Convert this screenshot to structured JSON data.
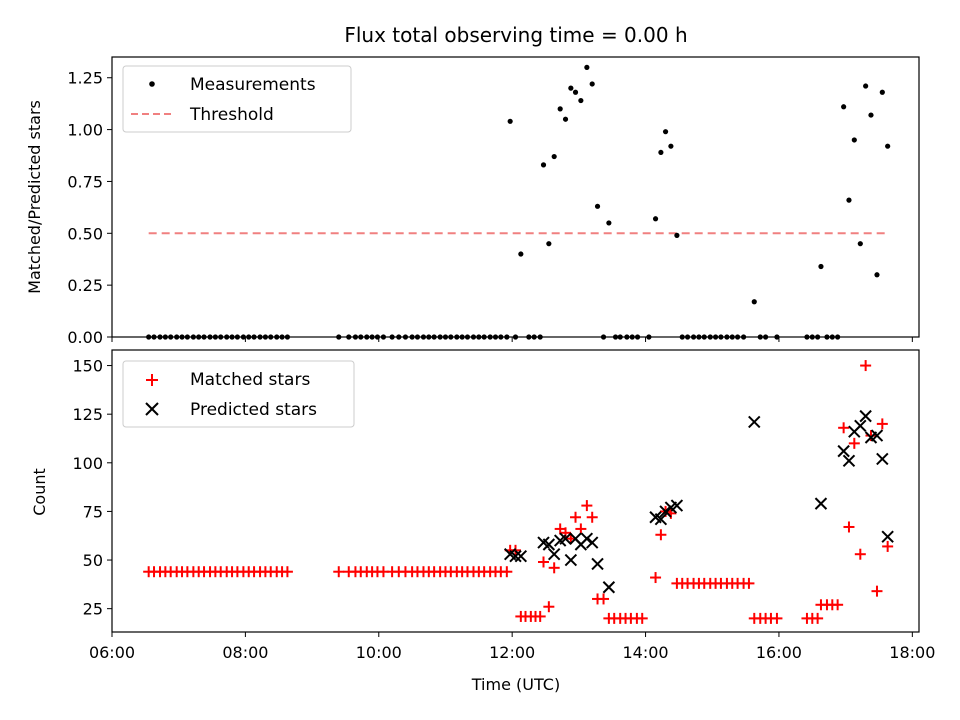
{
  "chart_data": [
    {
      "type": "scatter",
      "title": "Flux total observing time = 0.00 h",
      "ylabel": "Matched/Predicted stars",
      "xlabel": "",
      "ylim": [
        0,
        1.35
      ],
      "yticks": [
        "0.00",
        "0.25",
        "0.50",
        "0.75",
        "1.00",
        "1.25"
      ],
      "legend_position": "upper-left",
      "series": [
        {
          "name": "Measurements",
          "marker": "dot",
          "color": "#000000",
          "points": [
            [
              6.55,
              0
            ],
            [
              6.63,
              0
            ],
            [
              6.72,
              0
            ],
            [
              6.8,
              0
            ],
            [
              6.88,
              0
            ],
            [
              6.97,
              0
            ],
            [
              7.05,
              0
            ],
            [
              7.13,
              0
            ],
            [
              7.22,
              0
            ],
            [
              7.3,
              0
            ],
            [
              7.38,
              0
            ],
            [
              7.47,
              0
            ],
            [
              7.55,
              0
            ],
            [
              7.63,
              0
            ],
            [
              7.72,
              0
            ],
            [
              7.8,
              0
            ],
            [
              7.88,
              0
            ],
            [
              7.97,
              0
            ],
            [
              8.05,
              0
            ],
            [
              8.13,
              0
            ],
            [
              8.22,
              0
            ],
            [
              8.3,
              0
            ],
            [
              8.38,
              0
            ],
            [
              8.47,
              0
            ],
            [
              8.55,
              0
            ],
            [
              8.63,
              0
            ],
            [
              9.4,
              0
            ],
            [
              9.55,
              0
            ],
            [
              9.65,
              0
            ],
            [
              9.73,
              0
            ],
            [
              9.82,
              0
            ],
            [
              9.9,
              0
            ],
            [
              9.98,
              0
            ],
            [
              10.07,
              0
            ],
            [
              10.2,
              0
            ],
            [
              10.3,
              0
            ],
            [
              10.4,
              0
            ],
            [
              10.5,
              0
            ],
            [
              10.58,
              0
            ],
            [
              10.67,
              0
            ],
            [
              10.75,
              0
            ],
            [
              10.83,
              0
            ],
            [
              10.92,
              0
            ],
            [
              11.0,
              0
            ],
            [
              11.08,
              0
            ],
            [
              11.17,
              0
            ],
            [
              11.25,
              0
            ],
            [
              11.33,
              0
            ],
            [
              11.42,
              0
            ],
            [
              11.5,
              0
            ],
            [
              11.58,
              0
            ],
            [
              11.67,
              0
            ],
            [
              11.75,
              0
            ],
            [
              11.83,
              0
            ],
            [
              11.92,
              0
            ],
            [
              12.05,
              0
            ],
            [
              12.25,
              0
            ],
            [
              12.33,
              0
            ],
            [
              12.42,
              0
            ],
            [
              13.37,
              0
            ],
            [
              13.55,
              0
            ],
            [
              13.62,
              0
            ],
            [
              13.72,
              0
            ],
            [
              13.8,
              0
            ],
            [
              13.88,
              0
            ],
            [
              14.05,
              0
            ],
            [
              14.55,
              0
            ],
            [
              14.63,
              0
            ],
            [
              14.72,
              0
            ],
            [
              14.8,
              0
            ],
            [
              14.88,
              0
            ],
            [
              14.97,
              0
            ],
            [
              15.05,
              0
            ],
            [
              15.13,
              0
            ],
            [
              15.22,
              0
            ],
            [
              15.3,
              0
            ],
            [
              15.38,
              0
            ],
            [
              15.47,
              0
            ],
            [
              15.72,
              0
            ],
            [
              15.8,
              0
            ],
            [
              15.97,
              0
            ],
            [
              16.42,
              0
            ],
            [
              16.5,
              0
            ],
            [
              16.58,
              0
            ],
            [
              16.72,
              0
            ],
            [
              16.8,
              0
            ],
            [
              16.88,
              0
            ],
            [
              11.97,
              1.04
            ],
            [
              12.13,
              0.4
            ],
            [
              12.47,
              0.83
            ],
            [
              12.55,
              0.45
            ],
            [
              12.63,
              0.87
            ],
            [
              12.72,
              1.1
            ],
            [
              12.8,
              1.05
            ],
            [
              12.88,
              1.2
            ],
            [
              12.95,
              1.18
            ],
            [
              13.03,
              1.14
            ],
            [
              13.12,
              1.3
            ],
            [
              13.2,
              1.22
            ],
            [
              13.28,
              0.63
            ],
            [
              13.45,
              0.55
            ],
            [
              14.15,
              0.57
            ],
            [
              14.23,
              0.89
            ],
            [
              14.3,
              0.99
            ],
            [
              14.38,
              0.92
            ],
            [
              14.47,
              0.49
            ],
            [
              15.63,
              0.17
            ],
            [
              16.63,
              0.34
            ],
            [
              16.97,
              1.11
            ],
            [
              17.05,
              0.66
            ],
            [
              17.13,
              0.95
            ],
            [
              17.22,
              0.45
            ],
            [
              17.3,
              1.21
            ],
            [
              17.38,
              1.07
            ],
            [
              17.47,
              0.3
            ],
            [
              17.55,
              1.18
            ],
            [
              17.63,
              0.92
            ]
          ]
        },
        {
          "name": "Threshold",
          "marker": "dashed-line",
          "color": "#f08080",
          "points": [
            [
              6.55,
              0.5
            ],
            [
              17.63,
              0.5
            ]
          ]
        }
      ]
    },
    {
      "type": "scatter",
      "title": "",
      "ylabel": "Count",
      "xlabel": "Time (UTC)",
      "xlim": [
        6,
        18.1
      ],
      "ylim": [
        13,
        158
      ],
      "xticks": [
        "06:00",
        "08:00",
        "10:00",
        "12:00",
        "14:00",
        "16:00",
        "18:00"
      ],
      "yticks": [
        "25",
        "50",
        "75",
        "100",
        "125",
        "150"
      ],
      "legend_position": "upper-left",
      "series": [
        {
          "name": "Matched stars",
          "marker": "plus",
          "color": "#ff0000",
          "points": [
            [
              6.55,
              44
            ],
            [
              6.63,
              44
            ],
            [
              6.72,
              44
            ],
            [
              6.8,
              44
            ],
            [
              6.88,
              44
            ],
            [
              6.97,
              44
            ],
            [
              7.05,
              44
            ],
            [
              7.13,
              44
            ],
            [
              7.22,
              44
            ],
            [
              7.3,
              44
            ],
            [
              7.38,
              44
            ],
            [
              7.47,
              44
            ],
            [
              7.55,
              44
            ],
            [
              7.63,
              44
            ],
            [
              7.72,
              44
            ],
            [
              7.8,
              44
            ],
            [
              7.88,
              44
            ],
            [
              7.97,
              44
            ],
            [
              8.05,
              44
            ],
            [
              8.13,
              44
            ],
            [
              8.22,
              44
            ],
            [
              8.3,
              44
            ],
            [
              8.38,
              44
            ],
            [
              8.47,
              44
            ],
            [
              8.55,
              44
            ],
            [
              8.63,
              44
            ],
            [
              9.4,
              44
            ],
            [
              9.55,
              44
            ],
            [
              9.65,
              44
            ],
            [
              9.73,
              44
            ],
            [
              9.82,
              44
            ],
            [
              9.9,
              44
            ],
            [
              9.98,
              44
            ],
            [
              10.07,
              44
            ],
            [
              10.2,
              44
            ],
            [
              10.3,
              44
            ],
            [
              10.4,
              44
            ],
            [
              10.5,
              44
            ],
            [
              10.58,
              44
            ],
            [
              10.67,
              44
            ],
            [
              10.75,
              44
            ],
            [
              10.83,
              44
            ],
            [
              10.92,
              44
            ],
            [
              11.0,
              44
            ],
            [
              11.08,
              44
            ],
            [
              11.17,
              44
            ],
            [
              11.25,
              44
            ],
            [
              11.33,
              44
            ],
            [
              11.42,
              44
            ],
            [
              11.5,
              44
            ],
            [
              11.58,
              44
            ],
            [
              11.67,
              44
            ],
            [
              11.75,
              44
            ],
            [
              11.83,
              44
            ],
            [
              11.92,
              44
            ],
            [
              11.97,
              55
            ],
            [
              12.05,
              55
            ],
            [
              12.13,
              21
            ],
            [
              12.2,
              21
            ],
            [
              12.28,
              21
            ],
            [
              12.35,
              21
            ],
            [
              12.42,
              21
            ],
            [
              12.47,
              49
            ],
            [
              12.55,
              26
            ],
            [
              12.63,
              46
            ],
            [
              12.72,
              66
            ],
            [
              12.8,
              64
            ],
            [
              12.88,
              61
            ],
            [
              12.95,
              72
            ],
            [
              13.03,
              66
            ],
            [
              13.12,
              78
            ],
            [
              13.2,
              72
            ],
            [
              13.28,
              30
            ],
            [
              13.37,
              30
            ],
            [
              13.45,
              20
            ],
            [
              13.53,
              20
            ],
            [
              13.62,
              20
            ],
            [
              13.7,
              20
            ],
            [
              13.78,
              20
            ],
            [
              13.87,
              20
            ],
            [
              13.95,
              20
            ],
            [
              14.15,
              41
            ],
            [
              14.23,
              63
            ],
            [
              14.3,
              75
            ],
            [
              14.38,
              74
            ],
            [
              14.47,
              38
            ],
            [
              14.55,
              38
            ],
            [
              14.63,
              38
            ],
            [
              14.72,
              38
            ],
            [
              14.8,
              38
            ],
            [
              14.88,
              38
            ],
            [
              14.97,
              38
            ],
            [
              15.05,
              38
            ],
            [
              15.13,
              38
            ],
            [
              15.22,
              38
            ],
            [
              15.3,
              38
            ],
            [
              15.38,
              38
            ],
            [
              15.47,
              38
            ],
            [
              15.55,
              38
            ],
            [
              15.63,
              20
            ],
            [
              15.72,
              20
            ],
            [
              15.8,
              20
            ],
            [
              15.88,
              20
            ],
            [
              15.97,
              20
            ],
            [
              16.42,
              20
            ],
            [
              16.5,
              20
            ],
            [
              16.58,
              20
            ],
            [
              16.63,
              27
            ],
            [
              16.72,
              27
            ],
            [
              16.8,
              27
            ],
            [
              16.88,
              27
            ],
            [
              16.97,
              118
            ],
            [
              17.05,
              67
            ],
            [
              17.13,
              110
            ],
            [
              17.22,
              53
            ],
            [
              17.3,
              150
            ],
            [
              17.38,
              114
            ],
            [
              17.47,
              34
            ],
            [
              17.55,
              120
            ],
            [
              17.63,
              57
            ]
          ]
        },
        {
          "name": "Predicted stars",
          "marker": "x",
          "color": "#000000",
          "points": [
            [
              11.97,
              53
            ],
            [
              12.05,
              52
            ],
            [
              12.13,
              52
            ],
            [
              12.47,
              59
            ],
            [
              12.55,
              58
            ],
            [
              12.63,
              53
            ],
            [
              12.72,
              60
            ],
            [
              12.8,
              61
            ],
            [
              12.88,
              50
            ],
            [
              12.95,
              61
            ],
            [
              13.03,
              58
            ],
            [
              13.12,
              61
            ],
            [
              13.2,
              59
            ],
            [
              13.28,
              48
            ],
            [
              13.45,
              36
            ],
            [
              14.15,
              72
            ],
            [
              14.23,
              71
            ],
            [
              14.3,
              75
            ],
            [
              14.38,
              77
            ],
            [
              14.47,
              78
            ],
            [
              15.63,
              121
            ],
            [
              16.63,
              79
            ],
            [
              16.97,
              106
            ],
            [
              17.05,
              101
            ],
            [
              17.13,
              116
            ],
            [
              17.22,
              119
            ],
            [
              17.3,
              124
            ],
            [
              17.38,
              113
            ],
            [
              17.47,
              114
            ],
            [
              17.55,
              102
            ],
            [
              17.63,
              62
            ]
          ]
        }
      ]
    }
  ]
}
